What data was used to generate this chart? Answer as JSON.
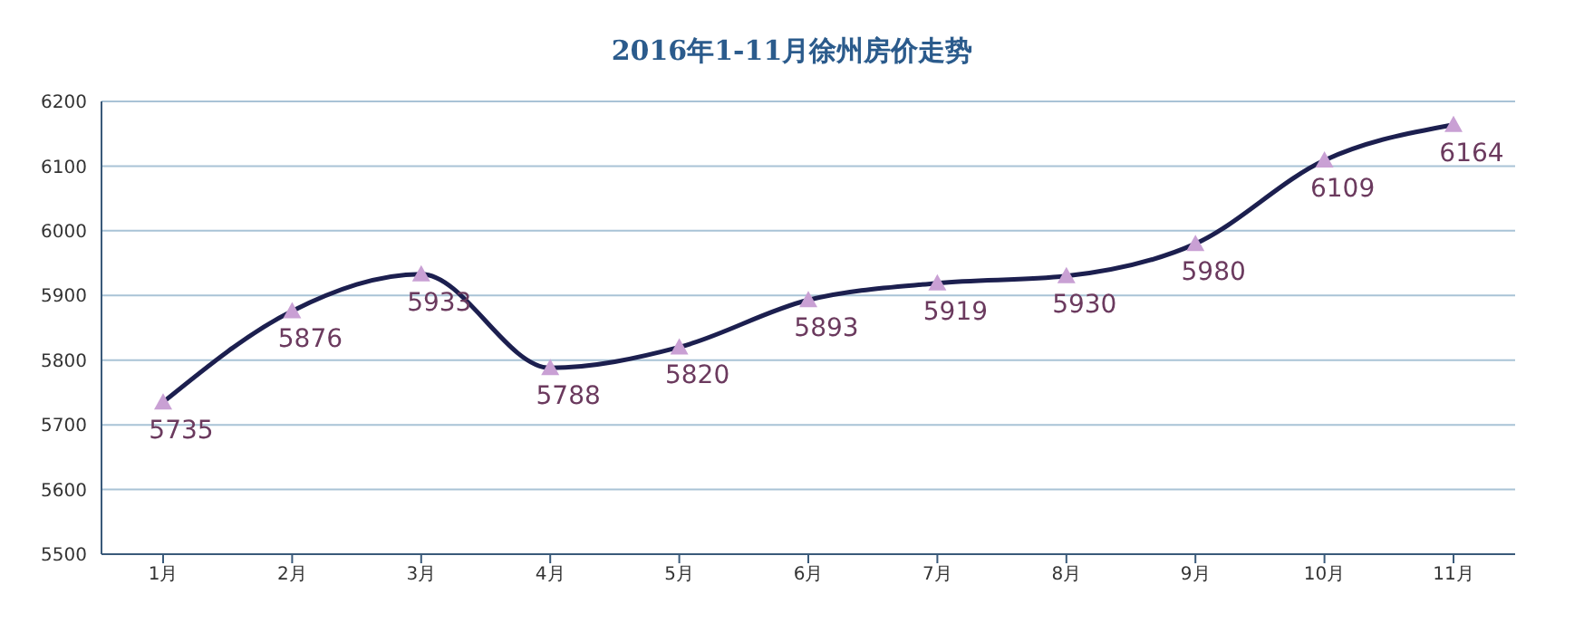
{
  "chart_data": {
    "type": "line",
    "title": "2016年1-11月徐州房价走势",
    "categories": [
      "1月",
      "2月",
      "3月",
      "4月",
      "5月",
      "6月",
      "7月",
      "8月",
      "9月",
      "10月",
      "11月"
    ],
    "series": [
      {
        "color": "#1c1f4f",
        "values": [
          5735,
          5876,
          5933,
          5788,
          5820,
          5893,
          5919,
          5930,
          5980,
          6109,
          6164
        ]
      }
    ],
    "ylim": [
      5500,
      6200
    ],
    "yticks": [
      5500,
      5600,
      5700,
      5800,
      5900,
      6000,
      6100,
      6200
    ],
    "grid": "y",
    "marker": "triangle",
    "data_labels": true
  }
}
